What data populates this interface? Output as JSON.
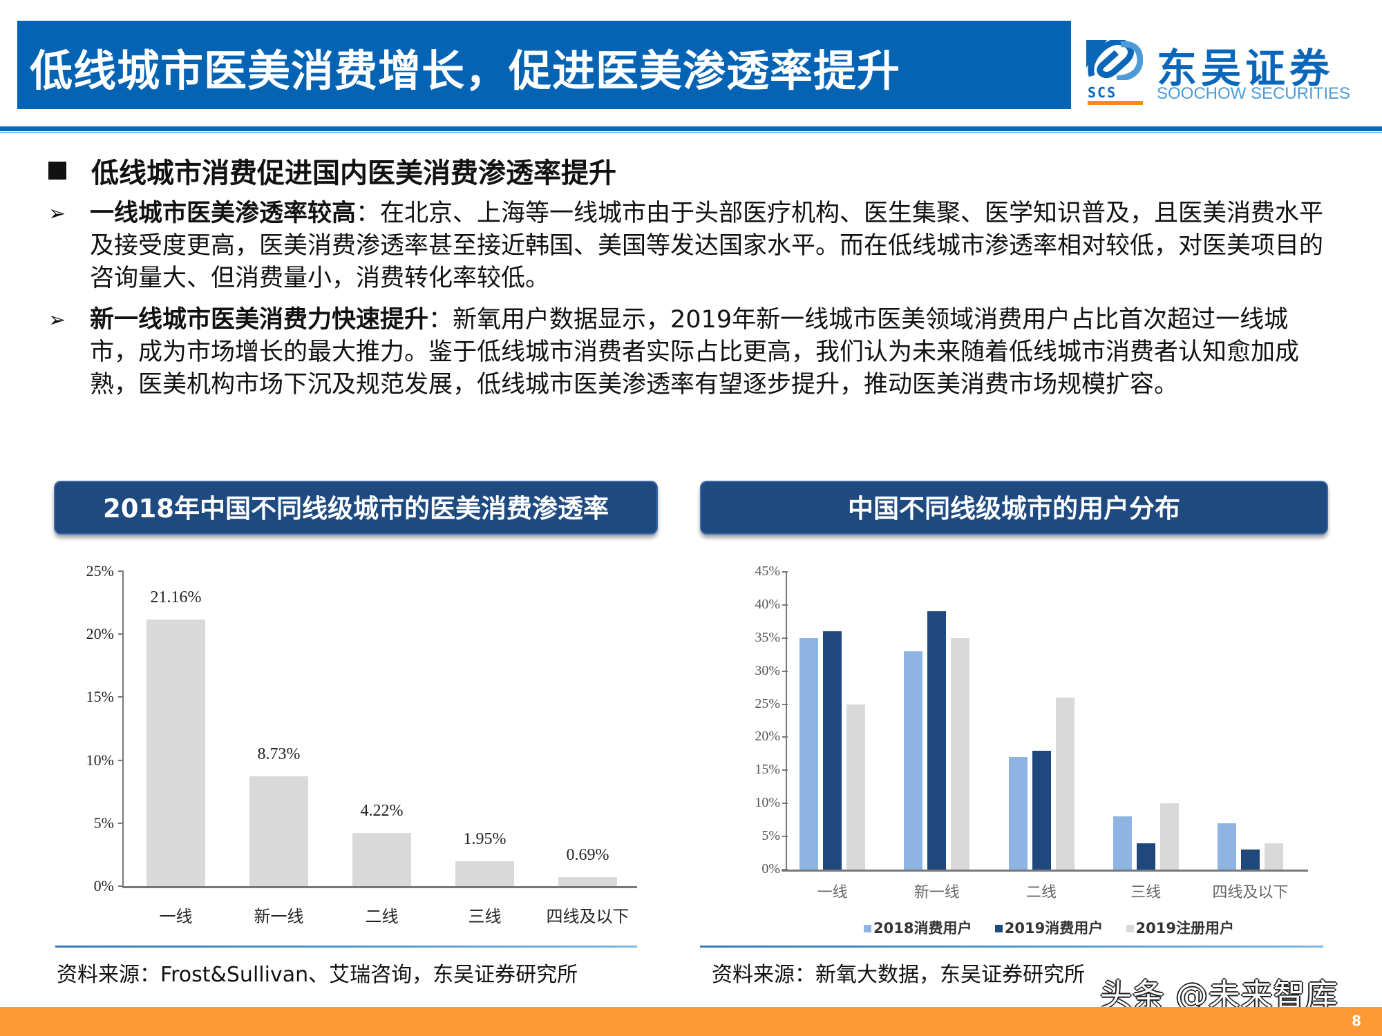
{
  "header": {
    "title": "低线城市医美消费增长，促进医美渗透率提升",
    "logo": {
      "cn": "东吴证券",
      "abbr": "SCS",
      "en": "SOOCHOW SECURITIES",
      "colors": {
        "primary": "#0a66b8",
        "accent": "#f08c1e",
        "light": "#4d9ad6"
      }
    }
  },
  "section": {
    "heading": "低线城市消费促进国内医美消费渗透率提升",
    "bullets": [
      {
        "bold": "一线城市医美渗透率较高",
        "text": "：在北京、上海等一线城市由于头部医疗机构、医生集聚、医学知识普及，且医美消费水平及接受度更高，医美消费渗透率甚至接近韩国、美国等发达国家水平。而在低线城市渗透率相对较低，对医美项目的咨询量大、但消费量小，消费转化率较低。"
      },
      {
        "bold": "新一线城市医美消费力快速提升",
        "text": "：新氧用户数据显示，2019年新一线城市医美领域消费用户占比首次超过一线城市，成为市场增长的最大推力。鉴于低线城市消费者实际占比更高，我们认为未来随着低线城市消费者认知愈加成熟，医美机构市场下沉及规范发展，低线城市医美渗透率有望逐步提升，推动医美消费市场规模扩容。"
      }
    ]
  },
  "chart_data": [
    {
      "type": "bar",
      "title": "2018年中国不同线级城市的医美消费渗透率",
      "categories": [
        "一线",
        "新一线",
        "二线",
        "三线",
        "四线及以下"
      ],
      "values": [
        21.16,
        8.73,
        4.22,
        1.95,
        0.69
      ],
      "data_labels": [
        "21.16%",
        "8.73%",
        "4.22%",
        "1.95%",
        "0.69%"
      ],
      "y_ticks": [
        "0%",
        "5%",
        "10%",
        "15%",
        "20%",
        "25%"
      ],
      "ylim": [
        0,
        25
      ],
      "xlabel": "",
      "ylabel": "",
      "grid": false,
      "bar_color": "#d9d9d9",
      "source": "资料来源：Frost&Sullivan、艾瑞咨询，东吴证券研究所"
    },
    {
      "type": "bar",
      "title": "中国不同线级城市的用户分布",
      "categories": [
        "一线",
        "新一线",
        "二线",
        "三线",
        "四线及以下"
      ],
      "series": [
        {
          "name": "2018消费用户",
          "values": [
            35,
            33,
            17,
            8,
            7
          ],
          "color": "#8eb4e3"
        },
        {
          "name": "2019消费用户",
          "values": [
            36,
            39,
            18,
            4,
            3
          ],
          "color": "#1f497d"
        },
        {
          "name": "2019注册用户",
          "values": [
            25,
            35,
            26,
            10,
            4
          ],
          "color": "#d9d9d9"
        }
      ],
      "y_ticks": [
        "0%",
        "5%",
        "10%",
        "15%",
        "20%",
        "25%",
        "30%",
        "35%",
        "40%",
        "45%"
      ],
      "ylim": [
        0,
        45
      ],
      "xlabel": "",
      "ylabel": "",
      "grid": false,
      "legend_position": "bottom",
      "source": "资料来源：新氧大数据，东吴证券研究所"
    }
  ],
  "watermark": "头条 @未来智库",
  "footer": {
    "page_number": "8",
    "color": "#fd9a35"
  }
}
